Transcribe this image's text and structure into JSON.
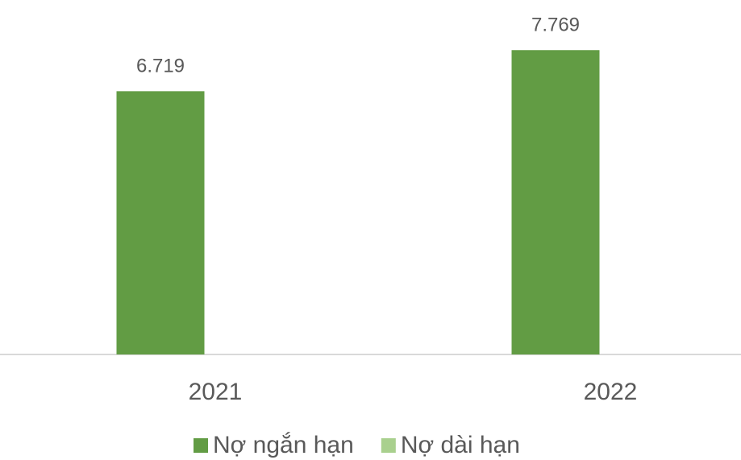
{
  "chart_data": {
    "type": "bar",
    "categories": [
      "2021",
      "2022"
    ],
    "series": [
      {
        "name": "Nợ ngắn hạn",
        "color": "#629c44",
        "values": [
          6719,
          7769
        ],
        "value_labels": [
          "6.719",
          "7.769"
        ]
      },
      {
        "name": "Nợ dài hạn",
        "color": "#a9d08e",
        "values": [
          0,
          0
        ]
      }
    ],
    "ylim": [
      0,
      8000
    ],
    "grid": false,
    "legend": "bottom"
  }
}
